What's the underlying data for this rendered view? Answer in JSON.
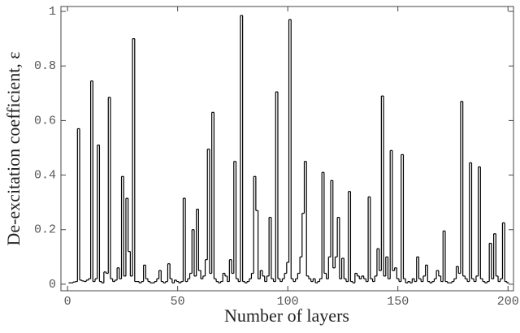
{
  "chart_data": {
    "type": "step",
    "xlabel": "Number of layers",
    "ylabel": "De-excitation coefficient, ε",
    "xlim": [
      -3,
      202.5
    ],
    "ylim": [
      -0.024,
      1.018
    ],
    "xticks": [
      0,
      50,
      100,
      150,
      200
    ],
    "yticks": [
      0,
      0.2,
      0.4,
      0.6,
      0.8,
      1
    ],
    "color": "#000000",
    "x": [
      1,
      2,
      3,
      4,
      5,
      6,
      7,
      8,
      9,
      10,
      11,
      12,
      13,
      14,
      15,
      16,
      17,
      18,
      19,
      20,
      21,
      22,
      23,
      24,
      25,
      26,
      27,
      28,
      29,
      30,
      31,
      32,
      33,
      34,
      35,
      36,
      37,
      38,
      39,
      40,
      41,
      42,
      43,
      44,
      45,
      46,
      47,
      48,
      49,
      50,
      51,
      52,
      53,
      54,
      55,
      56,
      57,
      58,
      59,
      60,
      61,
      62,
      63,
      64,
      65,
      66,
      67,
      68,
      69,
      70,
      71,
      72,
      73,
      74,
      75,
      76,
      77,
      78,
      79,
      80,
      81,
      82,
      83,
      84,
      85,
      86,
      87,
      88,
      89,
      90,
      91,
      92,
      93,
      94,
      95,
      96,
      97,
      98,
      99,
      100,
      101,
      102,
      103,
      104,
      105,
      106,
      107,
      108,
      109,
      110,
      111,
      112,
      113,
      114,
      115,
      116,
      117,
      118,
      119,
      120,
      121,
      122,
      123,
      124,
      125,
      126,
      127,
      128,
      129,
      130,
      131,
      132,
      133,
      134,
      135,
      136,
      137,
      138,
      139,
      140,
      141,
      142,
      143,
      144,
      145,
      146,
      147,
      148,
      149,
      150,
      151,
      152,
      153,
      154,
      155,
      156,
      157,
      158,
      159,
      160,
      161,
      162,
      163,
      164,
      165,
      166,
      167,
      168,
      169,
      170,
      171,
      172,
      173,
      174,
      175,
      176,
      177,
      178,
      179,
      180,
      181,
      182,
      183,
      184,
      185,
      186,
      187,
      188,
      189,
      190,
      191,
      192,
      193,
      194,
      195,
      196,
      197,
      198,
      199,
      200
    ],
    "values": [
      0.005,
      0.005,
      0.008,
      0.01,
      0.57,
      0.015,
      0.012,
      0.01,
      0.015,
      0.02,
      0.745,
      0.01,
      0.02,
      0.51,
      0.01,
      0.005,
      0.045,
      0.04,
      0.685,
      0.02,
      0.01,
      0.015,
      0.06,
      0.02,
      0.395,
      0.03,
      0.315,
      0.12,
      0.03,
      0.9,
      0.01,
      0.01,
      0.005,
      0.01,
      0.07,
      0.02,
      0.01,
      0.005,
      0.005,
      0.01,
      0.02,
      0.05,
      0.01,
      0.005,
      0.01,
      0.075,
      0.02,
      0.005,
      0.015,
      0.01,
      0.005,
      0.01,
      0.315,
      0.01,
      0.02,
      0.04,
      0.2,
      0.03,
      0.275,
      0.05,
      0.02,
      0.03,
      0.09,
      0.495,
      0.04,
      0.63,
      0.02,
      0.01,
      0.005,
      0.01,
      0.04,
      0.03,
      0.01,
      0.09,
      0.04,
      0.45,
      0.02,
      0.01,
      0.985,
      0.01,
      0.005,
      0.01,
      0.02,
      0.04,
      0.395,
      0.27,
      0.02,
      0.05,
      0.03,
      0.01,
      0.03,
      0.245,
      0.02,
      0.01,
      0.705,
      0.02,
      0.01,
      0.02,
      0.04,
      0.08,
      0.97,
      0.02,
      0.01,
      0.02,
      0.04,
      0.1,
      0.26,
      0.45,
      0.03,
      0.02,
      0.01,
      0.02,
      0.005,
      0.01,
      0.02,
      0.41,
      0.04,
      0.02,
      0.1,
      0.38,
      0.06,
      0.1,
      0.245,
      0.02,
      0.095,
      0.02,
      0.01,
      0.34,
      0.01,
      0.005,
      0.04,
      0.03,
      0.02,
      0.03,
      0.02,
      0.01,
      0.32,
      0.02,
      0.01,
      0.03,
      0.13,
      0.05,
      0.69,
      0.03,
      0.1,
      0.02,
      0.49,
      0.05,
      0.06,
      0.02,
      0.01,
      0.475,
      0.02,
      0.005,
      0.01,
      0.005,
      0.02,
      0.01,
      0.1,
      0.02,
      0.01,
      0.03,
      0.07,
      0.01,
      0.005,
      0.01,
      0.02,
      0.05,
      0.03,
      0.01,
      0.195,
      0.01,
      0.005,
      0.005,
      0.01,
      0.02,
      0.065,
      0.04,
      0.67,
      0.03,
      0.02,
      0.01,
      0.445,
      0.02,
      0.01,
      0.03,
      0.43,
      0.02,
      0.01,
      0.005,
      0.01,
      0.15,
      0.02,
      0.185,
      0.03,
      0.01,
      0.02,
      0.225,
      0.01,
      0.005
    ]
  }
}
